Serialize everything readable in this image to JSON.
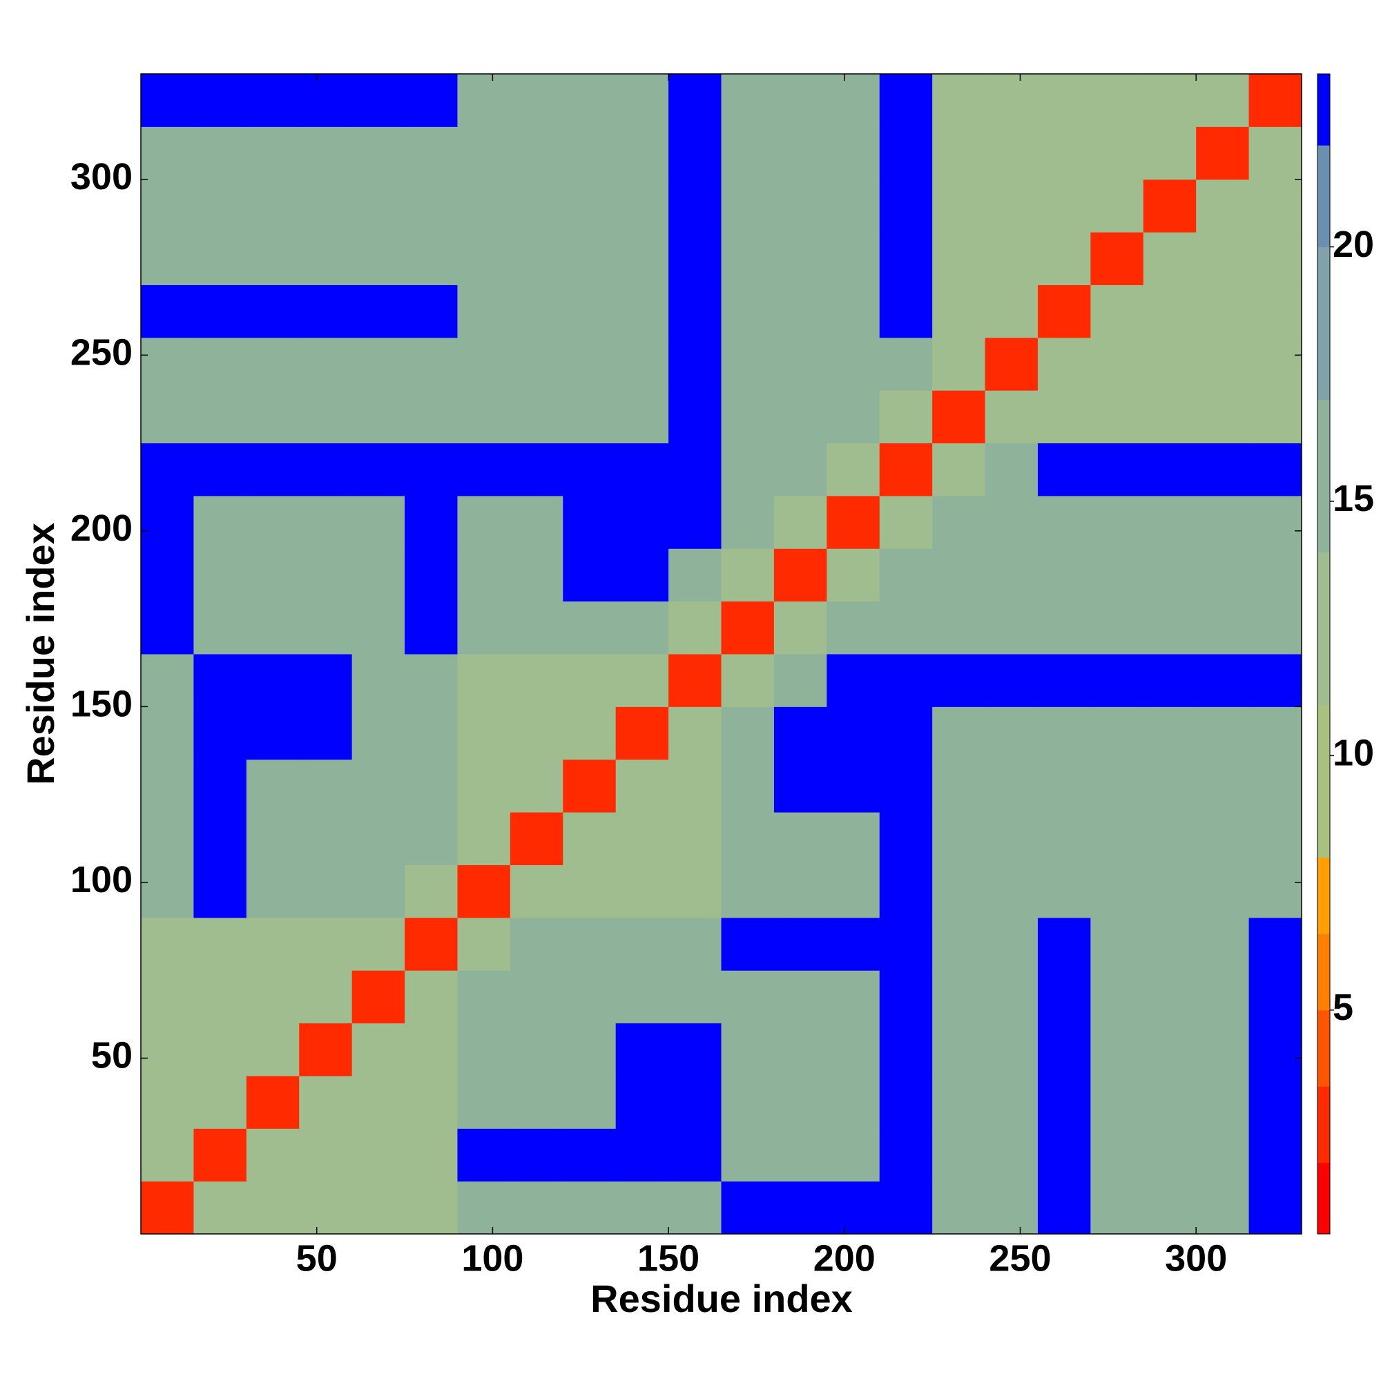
{
  "chart_data": {
    "type": "heatmap",
    "x_label": "Residue index",
    "y_label": "Residue index",
    "xlim": [
      0,
      330
    ],
    "ylim": [
      0,
      330
    ],
    "xticks": [
      50,
      100,
      150,
      200,
      250,
      300
    ],
    "yticks": [
      50,
      100,
      150,
      200,
      250,
      300
    ],
    "x": [
      7.5,
      22.5,
      37.5,
      52.5,
      67.5,
      82.5,
      97.5,
      112.5,
      127.5,
      142.5,
      157.5,
      172.5,
      187.5,
      202.5,
      217.5,
      232.5,
      247.5,
      262.5,
      277.5,
      292.5,
      307.5,
      322.5
    ],
    "y": [
      7.5,
      22.5,
      37.5,
      52.5,
      67.5,
      82.5,
      97.5,
      112.5,
      127.5,
      142.5,
      157.5,
      172.5,
      187.5,
      202.5,
      217.5,
      232.5,
      247.5,
      262.5,
      277.5,
      292.5,
      307.5,
      322.5
    ],
    "z": [
      [
        3,
        12,
        12,
        12,
        12,
        12,
        16,
        16,
        16,
        16,
        16,
        23,
        23,
        23,
        23,
        16,
        16,
        23,
        16,
        16,
        16,
        23
      ],
      [
        12,
        3,
        12,
        12,
        12,
        12,
        23,
        23,
        23,
        23,
        23,
        16,
        16,
        16,
        23,
        16,
        16,
        23,
        16,
        16,
        16,
        23
      ],
      [
        12,
        12,
        3,
        12,
        12,
        12,
        16,
        16,
        16,
        23,
        23,
        16,
        16,
        16,
        23,
        16,
        16,
        23,
        16,
        16,
        16,
        23
      ],
      [
        12,
        12,
        12,
        3,
        12,
        12,
        16,
        16,
        16,
        23,
        23,
        16,
        16,
        16,
        23,
        16,
        16,
        23,
        16,
        16,
        16,
        23
      ],
      [
        12,
        12,
        12,
        12,
        3,
        12,
        16,
        16,
        16,
        16,
        16,
        16,
        16,
        16,
        23,
        16,
        16,
        23,
        16,
        16,
        16,
        23
      ],
      [
        12,
        12,
        12,
        12,
        12,
        3,
        12,
        16,
        16,
        16,
        16,
        23,
        23,
        23,
        23,
        16,
        16,
        23,
        16,
        16,
        16,
        23
      ],
      [
        16,
        23,
        16,
        16,
        16,
        12,
        3,
        12,
        12,
        12,
        12,
        16,
        16,
        16,
        23,
        16,
        16,
        16,
        16,
        16,
        16,
        16
      ],
      [
        16,
        23,
        16,
        16,
        16,
        16,
        12,
        3,
        12,
        12,
        12,
        16,
        16,
        16,
        23,
        16,
        16,
        16,
        16,
        16,
        16,
        16
      ],
      [
        16,
        23,
        16,
        16,
        16,
        16,
        12,
        12,
        3,
        12,
        12,
        16,
        23,
        23,
        23,
        16,
        16,
        16,
        16,
        16,
        16,
        16
      ],
      [
        16,
        23,
        23,
        23,
        16,
        16,
        12,
        12,
        12,
        3,
        12,
        16,
        23,
        23,
        23,
        16,
        16,
        16,
        16,
        16,
        16,
        16
      ],
      [
        16,
        23,
        23,
        23,
        16,
        16,
        12,
        12,
        12,
        12,
        3,
        12,
        16,
        23,
        23,
        23,
        23,
        23,
        23,
        23,
        23,
        23
      ],
      [
        23,
        16,
        16,
        16,
        16,
        23,
        16,
        16,
        16,
        16,
        12,
        3,
        12,
        16,
        16,
        16,
        16,
        16,
        16,
        16,
        16,
        16
      ],
      [
        23,
        16,
        16,
        16,
        16,
        23,
        16,
        16,
        23,
        23,
        16,
        12,
        3,
        12,
        16,
        16,
        16,
        16,
        16,
        16,
        16,
        16
      ],
      [
        23,
        16,
        16,
        16,
        16,
        23,
        16,
        16,
        23,
        23,
        23,
        16,
        12,
        3,
        12,
        16,
        16,
        16,
        16,
        16,
        16,
        16
      ],
      [
        23,
        23,
        23,
        23,
        23,
        23,
        23,
        23,
        23,
        23,
        23,
        16,
        16,
        12,
        3,
        12,
        16,
        23,
        23,
        23,
        23,
        23
      ],
      [
        16,
        16,
        16,
        16,
        16,
        16,
        16,
        16,
        16,
        16,
        23,
        16,
        16,
        16,
        12,
        3,
        12,
        12,
        12,
        12,
        12,
        12
      ],
      [
        16,
        16,
        16,
        16,
        16,
        16,
        16,
        16,
        16,
        16,
        23,
        16,
        16,
        16,
        16,
        12,
        3,
        12,
        12,
        12,
        12,
        12
      ],
      [
        23,
        23,
        23,
        23,
        23,
        23,
        16,
        16,
        16,
        16,
        23,
        16,
        16,
        16,
        23,
        12,
        12,
        3,
        12,
        12,
        12,
        12
      ],
      [
        16,
        16,
        16,
        16,
        16,
        16,
        16,
        16,
        16,
        16,
        23,
        16,
        16,
        16,
        23,
        12,
        12,
        12,
        3,
        12,
        12,
        12
      ],
      [
        16,
        16,
        16,
        16,
        16,
        16,
        16,
        16,
        16,
        16,
        23,
        16,
        16,
        16,
        23,
        12,
        12,
        12,
        12,
        3,
        12,
        12
      ],
      [
        16,
        16,
        16,
        16,
        16,
        16,
        16,
        16,
        16,
        16,
        23,
        16,
        16,
        16,
        23,
        12,
        12,
        12,
        12,
        12,
        3,
        12
      ],
      [
        23,
        23,
        23,
        23,
        23,
        23,
        16,
        16,
        16,
        16,
        23,
        16,
        16,
        16,
        23,
        12,
        12,
        12,
        12,
        12,
        12,
        3
      ]
    ],
    "colorbar": {
      "levels": [
        0.6,
        2,
        3.5,
        5,
        6.5,
        8,
        11,
        14,
        17,
        20,
        22,
        23.4
      ],
      "colors": [
        "#ff0000",
        "#ff2a00",
        "#ff5500",
        "#ff8000",
        "#ff9f00",
        "#a8c080",
        "#9fbd8f",
        "#8fb39a",
        "#7fa3a8",
        "#6a8fb0",
        "#0000ff"
      ],
      "ticks": [
        5,
        10,
        15,
        20
      ]
    }
  }
}
